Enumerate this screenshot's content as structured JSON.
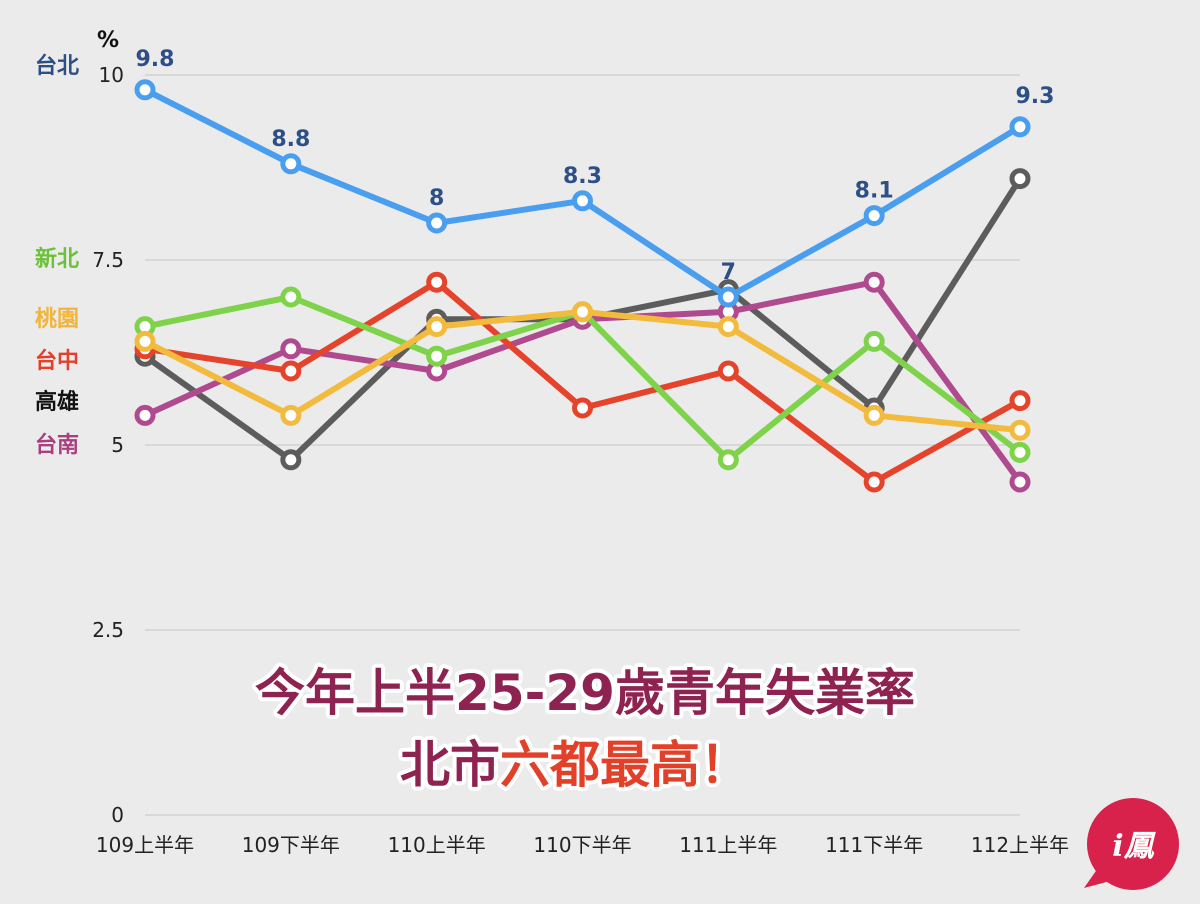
{
  "chart_data": {
    "type": "line",
    "ylabel": "%",
    "ylim": [
      0,
      10
    ],
    "yticks": [
      "0",
      "2.5",
      "5",
      "7.5",
      "10"
    ],
    "categories": [
      "109上半年",
      "109下半年",
      "110上半年",
      "110下半年",
      "111上半年",
      "111下半年",
      "112上半年"
    ],
    "grid": true,
    "legend": "left",
    "series": [
      {
        "name": "台北",
        "color": "#4a9eef",
        "label_color": "#2d4f86",
        "values": [
          9.8,
          8.8,
          8,
          8.3,
          7,
          8.1,
          9.3
        ],
        "data_labels": [
          "9.8",
          "8.8",
          "8",
          "8.3",
          "7",
          "8.1",
          "9.3"
        ]
      },
      {
        "name": "新北",
        "color": "#7ed34a",
        "label_color": "#6cc03a",
        "values": [
          6.6,
          7.0,
          6.2,
          6.8,
          4.8,
          6.4,
          4.9
        ]
      },
      {
        "name": "桃園",
        "color": "#f2bb3e",
        "label_color": "#f0b53a",
        "values": [
          6.4,
          5.4,
          6.6,
          6.8,
          6.6,
          5.4,
          5.2
        ]
      },
      {
        "name": "台中",
        "color": "#e5432b",
        "label_color": "#e2402a",
        "values": [
          6.3,
          6.0,
          7.2,
          5.5,
          6.0,
          4.5,
          5.6
        ]
      },
      {
        "name": "高雄",
        "color": "#5c5c5c",
        "label_color": "#111111",
        "values": [
          6.2,
          4.8,
          6.7,
          6.7,
          7.1,
          5.5,
          8.6
        ]
      },
      {
        "name": "台南",
        "color": "#b04a8f",
        "label_color": "#a8407f",
        "values": [
          5.4,
          6.3,
          6.0,
          6.7,
          6.8,
          7.2,
          4.5
        ]
      }
    ]
  },
  "headline": {
    "line1": "今年上半25-29歲青年失業率",
    "line2_prefix": "北市",
    "line2_highlight": "六都最高",
    "line2_suffix": "！",
    "color_main": "#8e2251",
    "color_highlight": "#e3402a"
  },
  "logo": {
    "text": "i鳳",
    "color": "#d8214b"
  }
}
